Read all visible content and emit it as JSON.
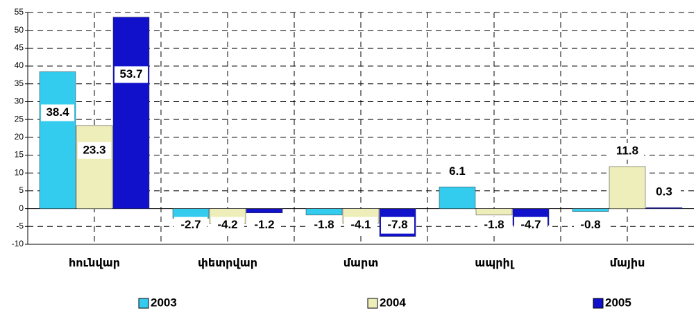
{
  "chart_data": {
    "type": "bar",
    "categories": [
      "հունվար",
      "փետրվար",
      "մարտ",
      "ապրիլ",
      "մայիս"
    ],
    "series": [
      {
        "name": "2003",
        "color": "#33ccee",
        "values": [
          38.4,
          -2.7,
          -1.8,
          6.1,
          -0.8
        ]
      },
      {
        "name": "2004",
        "color": "#eeeebb",
        "values": [
          23.3,
          -4.2,
          -4.1,
          -1.8,
          11.8
        ]
      },
      {
        "name": "2005",
        "color": "#1111cc",
        "values": [
          53.7,
          -1.2,
          -7.8,
          -4.7,
          0.3
        ]
      }
    ],
    "ylim": [
      -10,
      55
    ],
    "yticks": [
      -10,
      -5,
      0,
      5,
      10,
      15,
      20,
      25,
      30,
      35,
      40,
      45,
      50,
      55
    ],
    "grid": true,
    "legend": "bottom"
  }
}
